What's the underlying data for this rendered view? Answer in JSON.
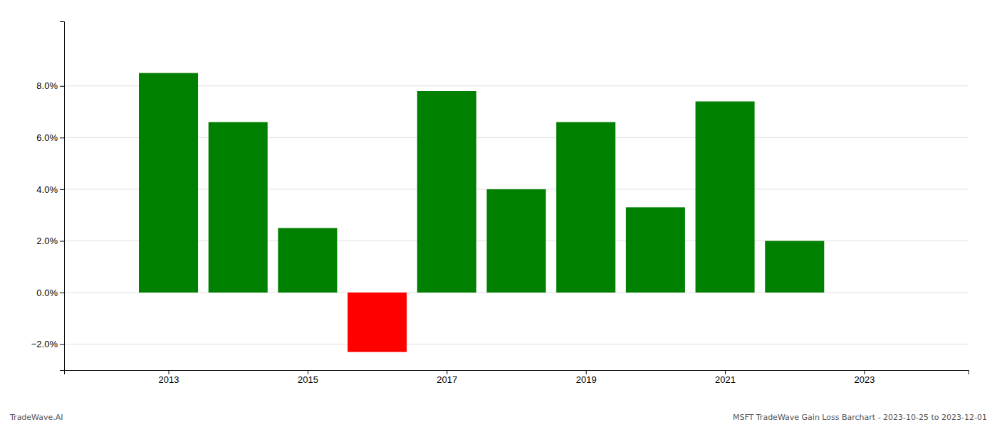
{
  "chart_data": {
    "type": "bar",
    "x": [
      2013,
      2014,
      2015,
      2016,
      2017,
      2018,
      2019,
      2020,
      2021,
      2022
    ],
    "values": [
      0.085,
      0.066,
      0.025,
      -0.023,
      0.078,
      0.04,
      0.066,
      0.033,
      0.074,
      0.02
    ],
    "colors": [
      "#008000",
      "#008000",
      "#008000",
      "#ff0000",
      "#008000",
      "#008000",
      "#008000",
      "#008000",
      "#008000",
      "#008000"
    ],
    "xlim": [
      2011.5,
      2024.5
    ],
    "xticks": [
      2013,
      2015,
      2017,
      2019,
      2021,
      2023
    ],
    "ylim": [
      -0.03,
      0.105
    ],
    "yticks": [
      {
        "value": -0.02,
        "label": "−2.0%"
      },
      {
        "value": 0.0,
        "label": "0.0%"
      },
      {
        "value": 0.02,
        "label": "2.0%"
      },
      {
        "value": 0.04,
        "label": "4.0%"
      },
      {
        "value": 0.06,
        "label": "6.0%"
      },
      {
        "value": 0.08,
        "label": "8.0%"
      }
    ],
    "grid": true,
    "annotations": [
      "TradeWave.AI",
      "MSFT TradeWave Gain Loss Barchart - 2023-10-25 to 2023-12-01"
    ]
  }
}
